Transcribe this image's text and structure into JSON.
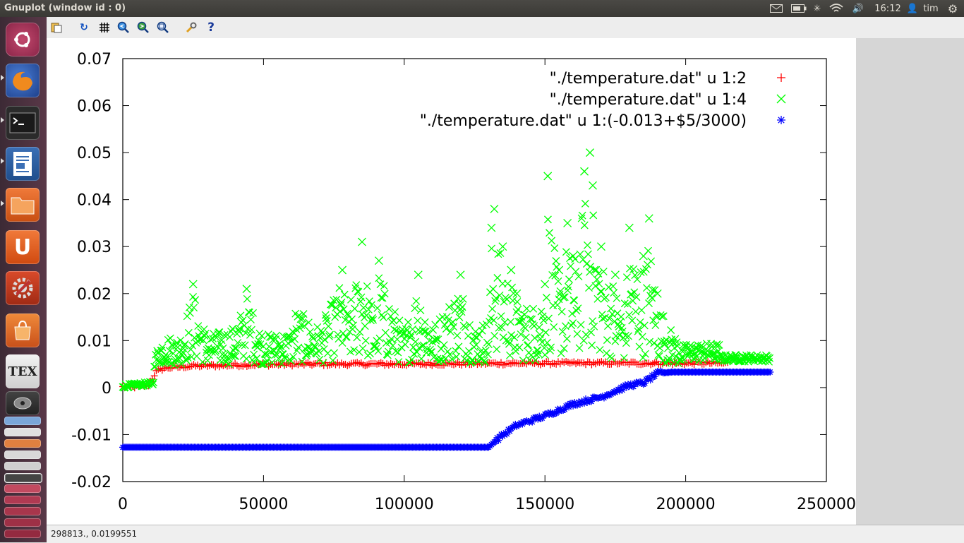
{
  "window": {
    "title": "Gnuplot (window id : 0)"
  },
  "topbar": {
    "time": "16:12",
    "user": "tim"
  },
  "status": {
    "coords": "298813., 0.0199551"
  },
  "launcher": {
    "tex_label": "TEX"
  },
  "chart_data": {
    "type": "scatter",
    "title": "",
    "xlabel": "",
    "ylabel": "",
    "xlim": [
      0,
      250000
    ],
    "ylim": [
      -0.02,
      0.07
    ],
    "xtick_labels": [
      "0",
      "50000",
      "100000",
      "150000",
      "200000",
      "250000"
    ],
    "ytick_labels": [
      "0.07",
      "0.06",
      "0.05",
      "0.04",
      "0.03",
      "0.02",
      "0.01",
      "0",
      "-0.01",
      "-0.02"
    ],
    "legend_position": "top-right",
    "series": [
      {
        "name": "\"./temperature.dat\" u 1:2",
        "marker": "+",
        "color": "#ff0000",
        "points": [
          [
            0,
            0.0001
          ],
          [
            5000,
            0.0002
          ],
          [
            9000,
            0.0005
          ],
          [
            12000,
            0.0035
          ],
          [
            15000,
            0.0042
          ],
          [
            25000,
            0.0046
          ],
          [
            50000,
            0.0049
          ],
          [
            75000,
            0.005
          ],
          [
            100000,
            0.005
          ],
          [
            125000,
            0.0051
          ],
          [
            150000,
            0.0052
          ],
          [
            175000,
            0.0052
          ],
          [
            200000,
            0.0052
          ],
          [
            215000,
            0.0052
          ]
        ]
      },
      {
        "name": "\"./temperature.dat\" u 1:4",
        "marker": "x",
        "color": "#00ff00",
        "points": [
          [
            0,
            0.0002
          ],
          [
            5000,
            0.0004
          ],
          [
            9000,
            0.001
          ],
          [
            11000,
            0.005
          ],
          [
            13000,
            0.009
          ],
          [
            15000,
            0.011
          ],
          [
            20000,
            0.01
          ],
          [
            25000,
            0.022
          ],
          [
            30000,
            0.011
          ],
          [
            40000,
            0.013
          ],
          [
            44000,
            0.021
          ],
          [
            50000,
            0.011
          ],
          [
            60000,
            0.012
          ],
          [
            61000,
            0.018
          ],
          [
            70000,
            0.013
          ],
          [
            78000,
            0.025
          ],
          [
            80000,
            0.017
          ],
          [
            85000,
            0.031
          ],
          [
            90000,
            0.014
          ],
          [
            91000,
            0.027
          ],
          [
            100000,
            0.012
          ],
          [
            105000,
            0.024
          ],
          [
            110000,
            0.013
          ],
          [
            120000,
            0.024
          ],
          [
            125000,
            0.013
          ],
          [
            130000,
            0.015
          ],
          [
            131000,
            0.034
          ],
          [
            132000,
            0.038
          ],
          [
            135000,
            0.03
          ],
          [
            138000,
            0.025
          ],
          [
            140000,
            0.02
          ],
          [
            145000,
            0.018
          ],
          [
            150000,
            0.022
          ],
          [
            151000,
            0.045
          ],
          [
            155000,
            0.025
          ],
          [
            158000,
            0.035
          ],
          [
            160000,
            0.028
          ],
          [
            164000,
            0.046
          ],
          [
            166000,
            0.05
          ],
          [
            167000,
            0.043
          ],
          [
            170000,
            0.03
          ],
          [
            175000,
            0.024
          ],
          [
            178000,
            0.017
          ],
          [
            180000,
            0.034
          ],
          [
            185000,
            0.028
          ],
          [
            187000,
            0.036
          ],
          [
            190000,
            0.02
          ],
          [
            195000,
            0.012
          ],
          [
            200000,
            0.008
          ],
          [
            210000,
            0.0065
          ],
          [
            220000,
            0.006
          ],
          [
            230000,
            0.0055
          ]
        ]
      },
      {
        "name": "\"./temperature.dat\" u 1:(-0.013+$5/3000)",
        "marker": "*",
        "color": "#0000ff",
        "points": [
          [
            0,
            -0.0127
          ],
          [
            30000,
            -0.0127
          ],
          [
            60000,
            -0.0127
          ],
          [
            100000,
            -0.0127
          ],
          [
            130000,
            -0.0127
          ],
          [
            133000,
            -0.011
          ],
          [
            140000,
            -0.008
          ],
          [
            150000,
            -0.006
          ],
          [
            160000,
            -0.0035
          ],
          [
            170000,
            -0.002
          ],
          [
            180000,
            0.0005
          ],
          [
            185000,
            0.001
          ],
          [
            190000,
            0.003
          ],
          [
            195000,
            0.0033
          ],
          [
            210000,
            0.0033
          ],
          [
            230000,
            0.0033
          ]
        ]
      }
    ]
  }
}
